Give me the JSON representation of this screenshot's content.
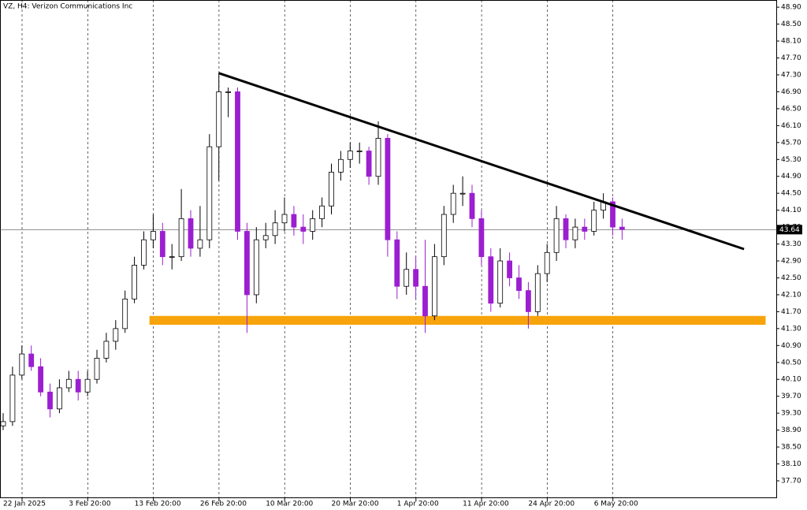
{
  "chart_data": {
    "type": "candlestick",
    "title": "VZ, H4:  Verizon Communications Inc",
    "open": [
      39.0,
      39.1,
      40.2,
      40.7,
      40.4,
      39.8,
      39.4,
      39.9,
      40.1,
      39.8,
      40.1,
      40.6,
      41.0,
      41.3,
      42.0,
      42.8,
      43.4,
      43.6,
      43.0,
      43.0,
      43.9,
      43.2,
      43.4,
      45.6,
      46.9,
      46.9,
      43.6,
      42.1,
      43.4,
      43.5,
      43.8,
      44.0,
      43.7,
      43.6,
      43.9,
      44.2,
      45.0,
      45.3,
      45.5,
      45.5,
      44.9,
      45.8,
      43.4,
      42.3,
      42.7,
      42.3,
      41.6,
      43.0,
      44.0,
      44.5,
      44.5,
      43.9,
      43.0,
      41.9,
      42.9,
      42.5,
      42.2,
      41.7,
      42.6,
      43.1,
      43.9,
      43.4,
      43.7,
      43.6,
      44.1,
      44.3,
      43.7
    ],
    "high": [
      39.3,
      40.4,
      40.9,
      40.9,
      40.6,
      40.0,
      40.1,
      40.3,
      40.3,
      40.3,
      40.8,
      41.2,
      41.5,
      42.2,
      43.0,
      43.6,
      44.0,
      43.8,
      43.3,
      44.6,
      44.1,
      44.2,
      45.9,
      47.35,
      47.0,
      47.0,
      43.8,
      43.7,
      43.8,
      44.1,
      44.4,
      44.2,
      44.0,
      44.1,
      44.4,
      45.2,
      45.5,
      45.7,
      45.7,
      45.6,
      46.2,
      45.9,
      43.6,
      43.1,
      43.0,
      43.4,
      43.3,
      44.2,
      44.7,
      44.9,
      44.7,
      44.1,
      43.2,
      43.2,
      43.1,
      42.8,
      42.4,
      42.8,
      43.3,
      44.2,
      44.0,
      43.9,
      43.9,
      44.3,
      44.5,
      44.4,
      43.9
    ],
    "low": [
      38.9,
      39.0,
      40.1,
      40.3,
      39.7,
      39.2,
      39.3,
      39.8,
      39.6,
      39.7,
      40.0,
      40.5,
      40.8,
      41.2,
      41.9,
      42.7,
      43.2,
      42.8,
      42.7,
      42.9,
      43.0,
      43.0,
      43.2,
      44.8,
      46.3,
      43.4,
      41.2,
      41.9,
      43.2,
      43.3,
      43.6,
      43.5,
      43.3,
      43.4,
      43.7,
      44.0,
      44.8,
      45.1,
      45.2,
      44.7,
      44.7,
      43.0,
      42.0,
      42.1,
      42.0,
      41.2,
      41.5,
      42.8,
      43.8,
      44.2,
      43.7,
      42.8,
      41.7,
      41.8,
      42.3,
      42.0,
      41.3,
      41.6,
      42.4,
      42.9,
      43.2,
      43.2,
      43.4,
      43.5,
      43.9,
      43.5,
      43.4
    ],
    "close": [
      39.1,
      40.2,
      40.7,
      40.4,
      39.8,
      39.4,
      39.9,
      40.1,
      39.8,
      40.1,
      40.6,
      41.0,
      41.3,
      42.0,
      42.8,
      43.4,
      43.6,
      43.0,
      43.0,
      43.9,
      43.2,
      43.4,
      45.6,
      46.9,
      46.9,
      43.6,
      42.1,
      43.4,
      43.5,
      43.8,
      44.0,
      43.7,
      43.6,
      43.9,
      44.2,
      45.0,
      45.3,
      45.5,
      45.5,
      44.9,
      45.8,
      43.4,
      42.3,
      42.7,
      42.3,
      41.6,
      43.0,
      44.0,
      44.5,
      44.5,
      43.9,
      43.0,
      41.9,
      42.9,
      42.5,
      42.2,
      41.7,
      42.6,
      43.1,
      43.9,
      43.4,
      43.7,
      43.6,
      44.1,
      44.3,
      43.7,
      43.64
    ],
    "up_color": "#ffffff",
    "down_color": "#9b1fd0",
    "ylim": [
      37.29,
      49.07
    ],
    "yticks": [
      {
        "value": 37.7,
        "label": "37.70"
      },
      {
        "value": 38.1,
        "label": "38.10"
      },
      {
        "value": 38.5,
        "label": "38.50"
      },
      {
        "value": 38.9,
        "label": "38.90"
      },
      {
        "value": 39.3,
        "label": "39.30"
      },
      {
        "value": 39.7,
        "label": "39.70"
      },
      {
        "value": 40.1,
        "label": "40.10"
      },
      {
        "value": 40.5,
        "label": "40.50"
      },
      {
        "value": 40.9,
        "label": "40.90"
      },
      {
        "value": 41.3,
        "label": "41.30"
      },
      {
        "value": 41.7,
        "label": "41.70"
      },
      {
        "value": 42.1,
        "label": "42.10"
      },
      {
        "value": 42.5,
        "label": "42.50"
      },
      {
        "value": 42.9,
        "label": "42.90"
      },
      {
        "value": 43.3,
        "label": "43.30"
      },
      {
        "value": 43.7,
        "label": "43.70"
      },
      {
        "value": 44.1,
        "label": "44.10"
      },
      {
        "value": 44.5,
        "label": "44.50"
      },
      {
        "value": 44.9,
        "label": "44.90"
      },
      {
        "value": 45.3,
        "label": "45.30"
      },
      {
        "value": 45.7,
        "label": "45.70"
      },
      {
        "value": 46.1,
        "label": "46.10"
      },
      {
        "value": 46.5,
        "label": "46.50"
      },
      {
        "value": 46.9,
        "label": "46.90"
      },
      {
        "value": 47.3,
        "label": "47.30"
      },
      {
        "value": 47.7,
        "label": "47.70"
      },
      {
        "value": 48.1,
        "label": "48.10"
      },
      {
        "value": 48.5,
        "label": "48.50"
      },
      {
        "value": 48.9,
        "label": "48.90"
      }
    ],
    "xticks": [
      {
        "value": 0,
        "label": "22 Jan 2025"
      },
      {
        "value": 7,
        "label": "3 Feb 20:00"
      },
      {
        "value": 14,
        "label": "13 Feb 20:00"
      },
      {
        "value": 21,
        "label": "26 Feb 20:00"
      },
      {
        "value": 28,
        "label": "10 Mar 20:00"
      },
      {
        "value": 35,
        "label": "20 Mar 20:00"
      },
      {
        "value": 42,
        "label": "1 Apr 20:00"
      },
      {
        "value": 49,
        "label": "11 Apr 20:00"
      },
      {
        "value": 56,
        "label": "24 Apr 20:00"
      },
      {
        "value": 63,
        "label": "6 May 20:00"
      }
    ],
    "current_price": 43.64,
    "trendline": {
      "x": [
        23,
        79
      ],
      "y": [
        47.34,
        43.18
      ],
      "color": "#000000"
    },
    "support_zone": {
      "x": [
        15.6,
        81.3
      ],
      "y": [
        41.39,
        41.6
      ],
      "color": "#f7a40c"
    }
  }
}
